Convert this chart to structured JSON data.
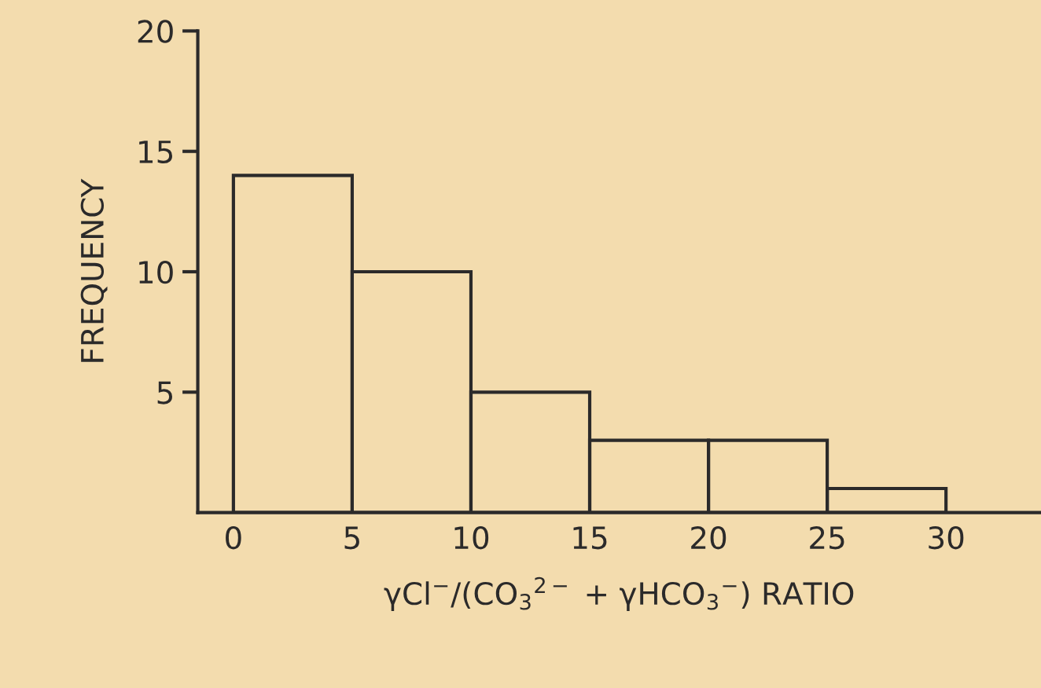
{
  "chart_data": {
    "type": "histogram",
    "bins": [
      0,
      5,
      10,
      15,
      20,
      25,
      30
    ],
    "values": [
      14,
      10,
      5,
      3,
      3,
      1
    ],
    "color": "#2b2a2a",
    "xlabel": "γCl$^{−}$/(CO$_{3}$$^{2−}$ + γHCO$_{3}$$^{−}$) RATIO",
    "ylabel": "FREQUENCY",
    "xlim": [
      -1.5,
      34
    ],
    "ylim": [
      0,
      20
    ],
    "xticks": [
      0,
      5,
      10,
      15,
      20,
      25,
      30
    ],
    "yticks": [
      5,
      10,
      15,
      20
    ],
    "grid": false,
    "legend": false
  }
}
